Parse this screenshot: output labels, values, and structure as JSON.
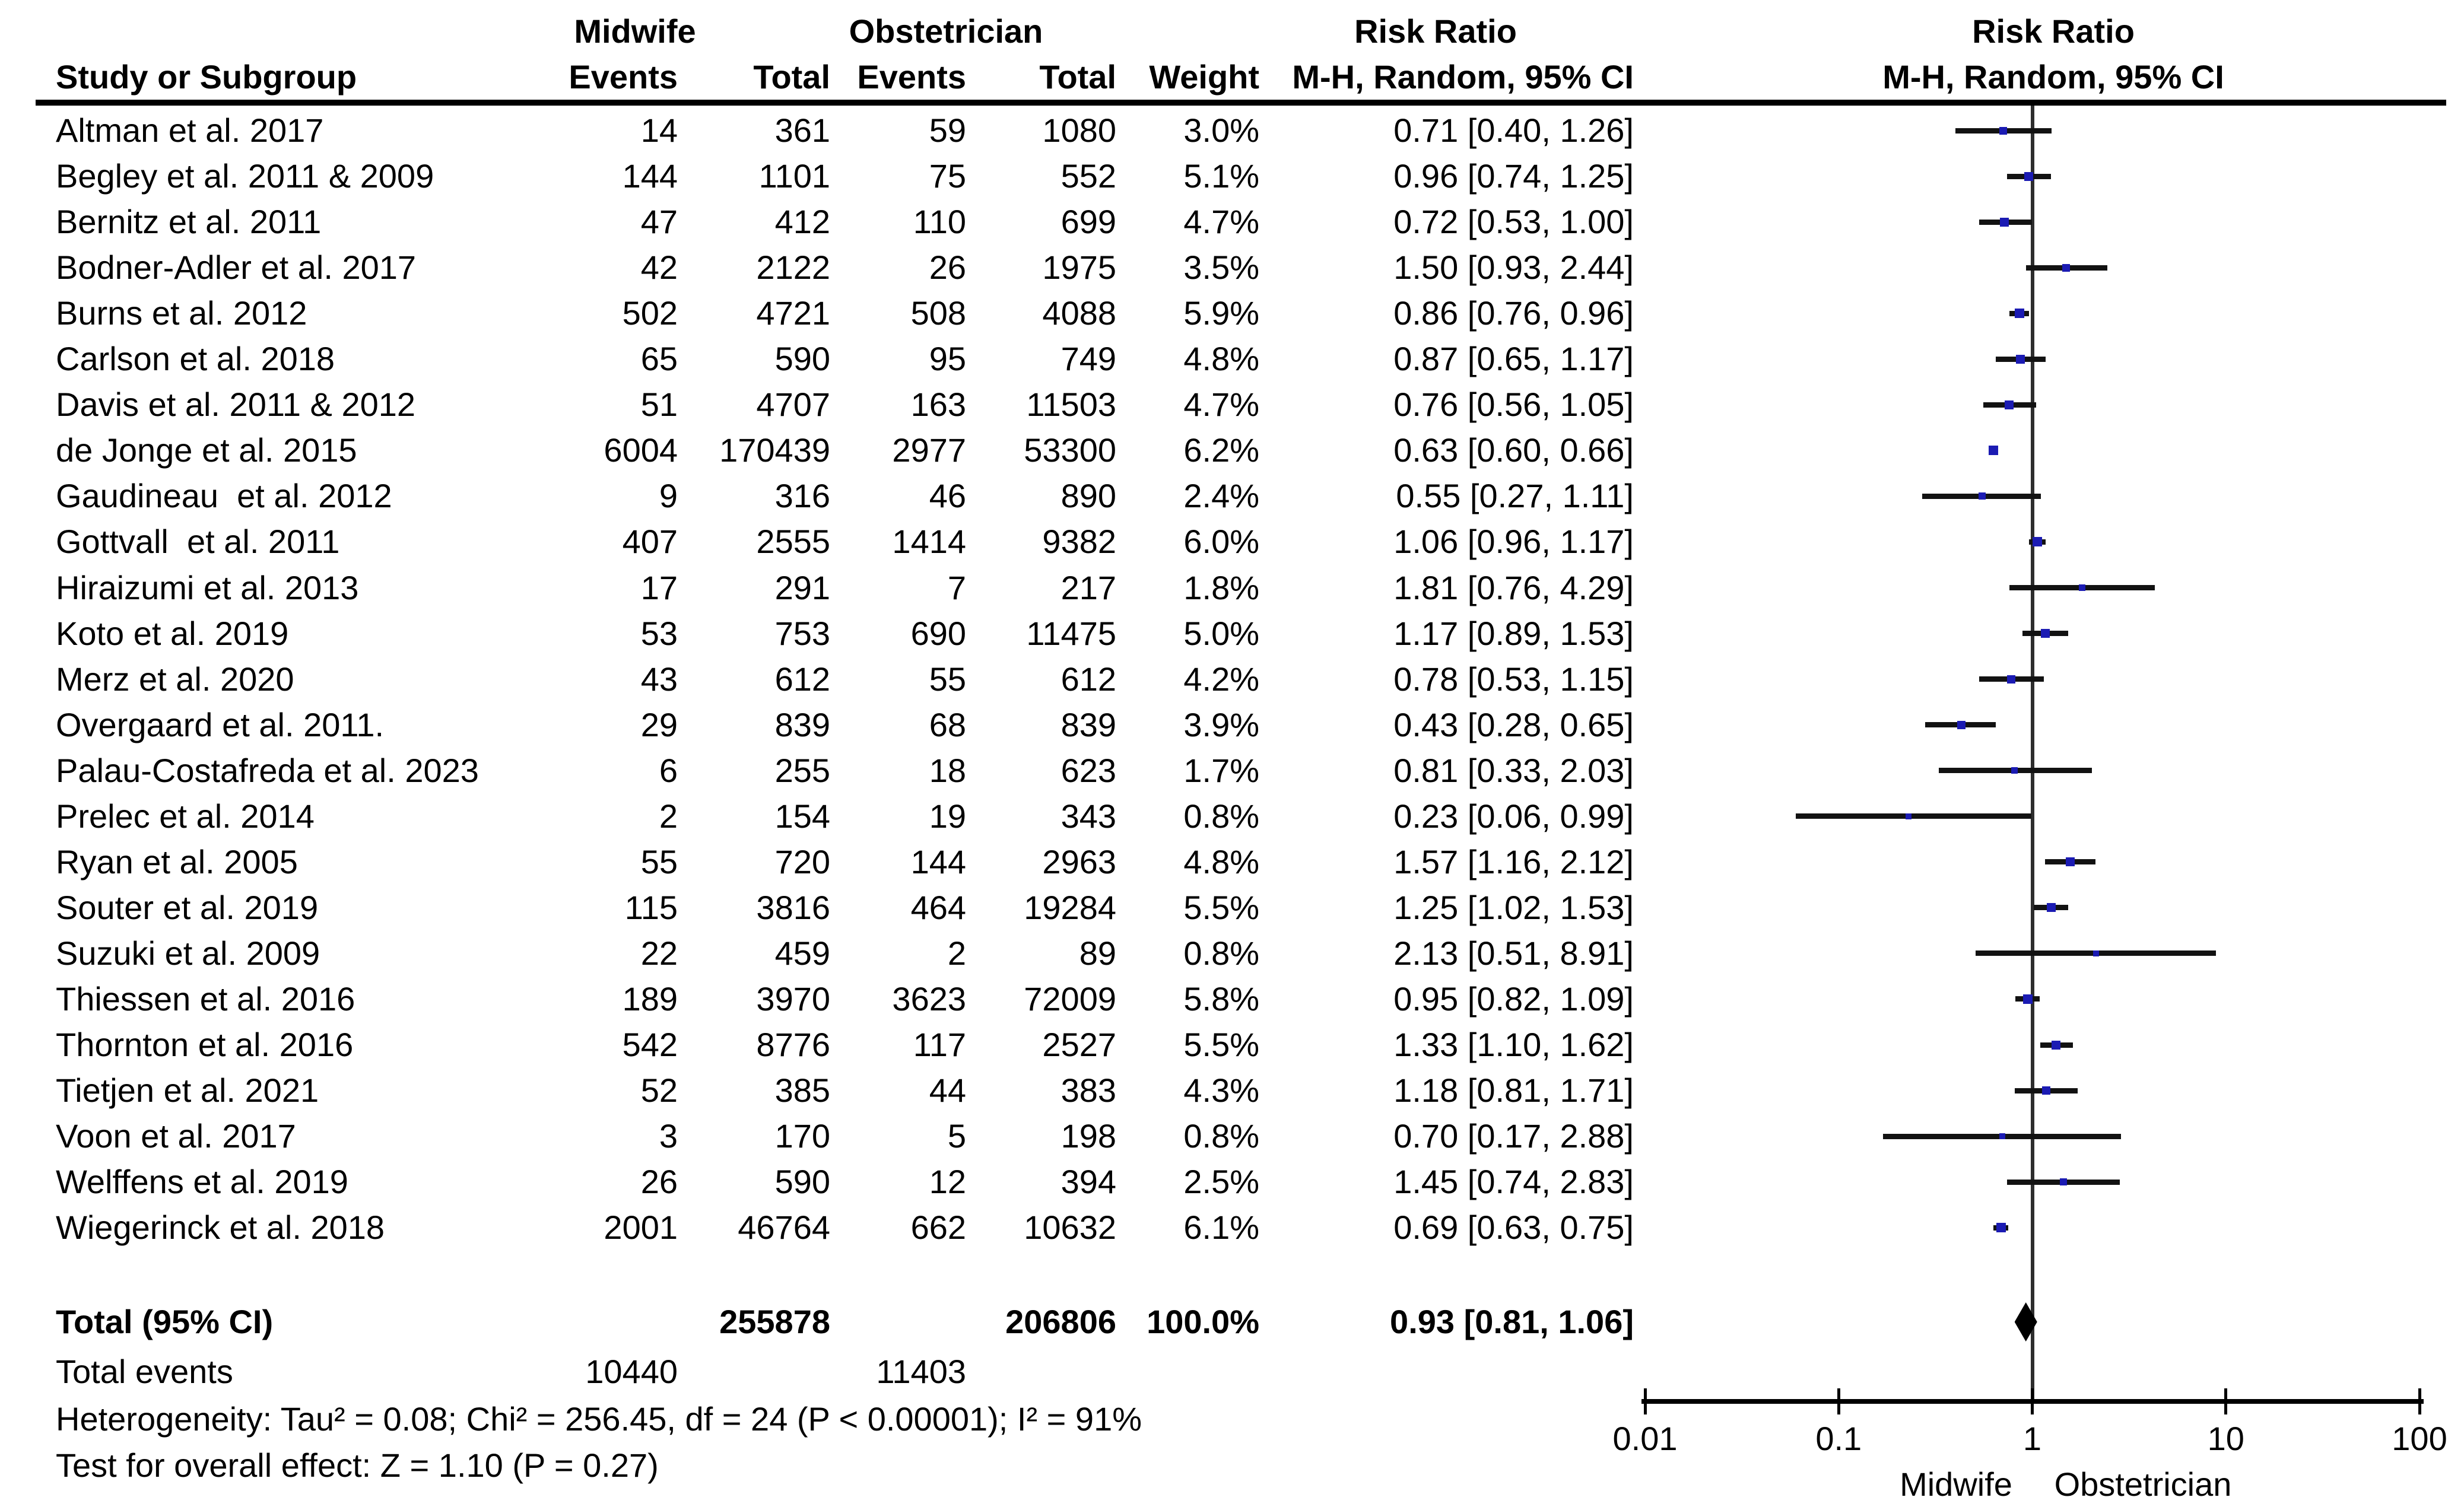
{
  "header": {
    "midwife": "Midwife",
    "obstetrician": "Obstetrician",
    "risk_ratio": "Risk Ratio",
    "study_or_subgroup": "Study or Subgroup",
    "events": "Events",
    "total": "Total",
    "weight": "Weight",
    "mh_random": "M-H, Random, 95% CI"
  },
  "axis": {
    "tick_labels": [
      "0.01",
      "0.1",
      "1",
      "10",
      "100"
    ],
    "left_label": "Midwife",
    "right_label": "Obstetrician"
  },
  "colors": {
    "marker": "#1b1bb3",
    "ci_line": "#121212",
    "diamond": "#000000",
    "center_line": "#2e2e2e",
    "axis": "#000000"
  },
  "chart_data": {
    "type": "forest",
    "effect_measure": "Risk Ratio",
    "method": "M-H, Random, 95% CI",
    "x_scale": "log",
    "x_ticks": [
      0.01,
      0.1,
      1,
      10,
      100
    ],
    "x_range": [
      0.01,
      100
    ],
    "studies": [
      {
        "name": "Altman et al. 2017",
        "midwife_events": "14",
        "midwife_total": "361",
        "obstetrician_events": "59",
        "obstetrician_total": "1080",
        "weight": "3.0%",
        "weight_value": 3.0,
        "rr": 0.71,
        "ci_low": 0.4,
        "ci_high": 1.26,
        "ci_label": "0.71 [0.40, 1.26]"
      },
      {
        "name": "Begley et al. 2011 & 2009",
        "midwife_events": "144",
        "midwife_total": "1101",
        "obstetrician_events": "75",
        "obstetrician_total": "552",
        "weight": "5.1%",
        "weight_value": 5.1,
        "rr": 0.96,
        "ci_low": 0.74,
        "ci_high": 1.25,
        "ci_label": "0.96 [0.74, 1.25]"
      },
      {
        "name": "Bernitz et al. 2011",
        "midwife_events": "47",
        "midwife_total": "412",
        "obstetrician_events": "110",
        "obstetrician_total": "699",
        "weight": "4.7%",
        "weight_value": 4.7,
        "rr": 0.72,
        "ci_low": 0.53,
        "ci_high": 1.0,
        "ci_label": "0.72 [0.53, 1.00]"
      },
      {
        "name": "Bodner-Adler et al. 2017",
        "midwife_events": "42",
        "midwife_total": "2122",
        "obstetrician_events": "26",
        "obstetrician_total": "1975",
        "weight": "3.5%",
        "weight_value": 3.5,
        "rr": 1.5,
        "ci_low": 0.93,
        "ci_high": 2.44,
        "ci_label": "1.50 [0.93, 2.44]"
      },
      {
        "name": "Burns et al. 2012",
        "midwife_events": "502",
        "midwife_total": "4721",
        "obstetrician_events": "508",
        "obstetrician_total": "4088",
        "weight": "5.9%",
        "weight_value": 5.9,
        "rr": 0.86,
        "ci_low": 0.76,
        "ci_high": 0.96,
        "ci_label": "0.86 [0.76, 0.96]"
      },
      {
        "name": "Carlson et al. 2018",
        "midwife_events": "65",
        "midwife_total": "590",
        "obstetrician_events": "95",
        "obstetrician_total": "749",
        "weight": "4.8%",
        "weight_value": 4.8,
        "rr": 0.87,
        "ci_low": 0.65,
        "ci_high": 1.17,
        "ci_label": "0.87 [0.65, 1.17]"
      },
      {
        "name": "Davis et al. 2011 & 2012",
        "midwife_events": "51",
        "midwife_total": "4707",
        "obstetrician_events": "163",
        "obstetrician_total": "11503",
        "weight": "4.7%",
        "weight_value": 4.7,
        "rr": 0.76,
        "ci_low": 0.56,
        "ci_high": 1.05,
        "ci_label": "0.76 [0.56, 1.05]"
      },
      {
        "name": "de Jonge et al. 2015",
        "midwife_events": "6004",
        "midwife_total": "170439",
        "obstetrician_events": "2977",
        "obstetrician_total": "53300",
        "weight": "6.2%",
        "weight_value": 6.2,
        "rr": 0.63,
        "ci_low": 0.6,
        "ci_high": 0.66,
        "ci_label": "0.63 [0.60, 0.66]"
      },
      {
        "name": "Gaudineau  et al. 2012",
        "midwife_events": "9",
        "midwife_total": "316",
        "obstetrician_events": "46",
        "obstetrician_total": "890",
        "weight": "2.4%",
        "weight_value": 2.4,
        "rr": 0.55,
        "ci_low": 0.27,
        "ci_high": 1.11,
        "ci_label": "0.55 [0.27, 1.11]"
      },
      {
        "name": "Gottvall  et al. 2011",
        "midwife_events": "407",
        "midwife_total": "2555",
        "obstetrician_events": "1414",
        "obstetrician_total": "9382",
        "weight": "6.0%",
        "weight_value": 6.0,
        "rr": 1.06,
        "ci_low": 0.96,
        "ci_high": 1.17,
        "ci_label": "1.06 [0.96, 1.17]"
      },
      {
        "name": "Hiraizumi et al. 2013",
        "midwife_events": "17",
        "midwife_total": "291",
        "obstetrician_events": "7",
        "obstetrician_total": "217",
        "weight": "1.8%",
        "weight_value": 1.8,
        "rr": 1.81,
        "ci_low": 0.76,
        "ci_high": 4.29,
        "ci_label": "1.81 [0.76, 4.29]"
      },
      {
        "name": "Koto et al. 2019",
        "midwife_events": "53",
        "midwife_total": "753",
        "obstetrician_events": "690",
        "obstetrician_total": "11475",
        "weight": "5.0%",
        "weight_value": 5.0,
        "rr": 1.17,
        "ci_low": 0.89,
        "ci_high": 1.53,
        "ci_label": "1.17 [0.89, 1.53]"
      },
      {
        "name": "Merz et al. 2020",
        "midwife_events": "43",
        "midwife_total": "612",
        "obstetrician_events": "55",
        "obstetrician_total": "612",
        "weight": "4.2%",
        "weight_value": 4.2,
        "rr": 0.78,
        "ci_low": 0.53,
        "ci_high": 1.15,
        "ci_label": "0.78 [0.53, 1.15]"
      },
      {
        "name": "Overgaard et al. 2011.",
        "midwife_events": "29",
        "midwife_total": "839",
        "obstetrician_events": "68",
        "obstetrician_total": "839",
        "weight": "3.9%",
        "weight_value": 3.9,
        "rr": 0.43,
        "ci_low": 0.28,
        "ci_high": 0.65,
        "ci_label": "0.43 [0.28, 0.65]"
      },
      {
        "name": "Palau-Costafreda et al. 2023",
        "midwife_events": "6",
        "midwife_total": "255",
        "obstetrician_events": "18",
        "obstetrician_total": "623",
        "weight": "1.7%",
        "weight_value": 1.7,
        "rr": 0.81,
        "ci_low": 0.33,
        "ci_high": 2.03,
        "ci_label": "0.81 [0.33, 2.03]"
      },
      {
        "name": "Prelec et al. 2014",
        "midwife_events": "2",
        "midwife_total": "154",
        "obstetrician_events": "19",
        "obstetrician_total": "343",
        "weight": "0.8%",
        "weight_value": 0.8,
        "rr": 0.23,
        "ci_low": 0.06,
        "ci_high": 0.99,
        "ci_label": "0.23 [0.06, 0.99]"
      },
      {
        "name": "Ryan et al. 2005",
        "midwife_events": "55",
        "midwife_total": "720",
        "obstetrician_events": "144",
        "obstetrician_total": "2963",
        "weight": "4.8%",
        "weight_value": 4.8,
        "rr": 1.57,
        "ci_low": 1.16,
        "ci_high": 2.12,
        "ci_label": "1.57 [1.16, 2.12]"
      },
      {
        "name": "Souter et al. 2019",
        "midwife_events": "115",
        "midwife_total": "3816",
        "obstetrician_events": "464",
        "obstetrician_total": "19284",
        "weight": "5.5%",
        "weight_value": 5.5,
        "rr": 1.25,
        "ci_low": 1.02,
        "ci_high": 1.53,
        "ci_label": "1.25 [1.02, 1.53]"
      },
      {
        "name": "Suzuki et al. 2009",
        "midwife_events": "22",
        "midwife_total": "459",
        "obstetrician_events": "2",
        "obstetrician_total": "89",
        "weight": "0.8%",
        "weight_value": 0.8,
        "rr": 2.13,
        "ci_low": 0.51,
        "ci_high": 8.91,
        "ci_label": "2.13 [0.51, 8.91]"
      },
      {
        "name": "Thiessen et al. 2016",
        "midwife_events": "189",
        "midwife_total": "3970",
        "obstetrician_events": "3623",
        "obstetrician_total": "72009",
        "weight": "5.8%",
        "weight_value": 5.8,
        "rr": 0.95,
        "ci_low": 0.82,
        "ci_high": 1.09,
        "ci_label": "0.95 [0.82, 1.09]"
      },
      {
        "name": "Thornton et al. 2016",
        "midwife_events": "542",
        "midwife_total": "8776",
        "obstetrician_events": "117",
        "obstetrician_total": "2527",
        "weight": "5.5%",
        "weight_value": 5.5,
        "rr": 1.33,
        "ci_low": 1.1,
        "ci_high": 1.62,
        "ci_label": "1.33 [1.10, 1.62]"
      },
      {
        "name": "Tietjen et al. 2021",
        "midwife_events": "52",
        "midwife_total": "385",
        "obstetrician_events": "44",
        "obstetrician_total": "383",
        "weight": "4.3%",
        "weight_value": 4.3,
        "rr": 1.18,
        "ci_low": 0.81,
        "ci_high": 1.71,
        "ci_label": "1.18 [0.81, 1.71]"
      },
      {
        "name": "Voon et al. 2017",
        "midwife_events": "3",
        "midwife_total": "170",
        "obstetrician_events": "5",
        "obstetrician_total": "198",
        "weight": "0.8%",
        "weight_value": 0.8,
        "rr": 0.7,
        "ci_low": 0.17,
        "ci_high": 2.88,
        "ci_label": "0.70 [0.17, 2.88]"
      },
      {
        "name": "Welffens et al. 2019",
        "midwife_events": "26",
        "midwife_total": "590",
        "obstetrician_events": "12",
        "obstetrician_total": "394",
        "weight": "2.5%",
        "weight_value": 2.5,
        "rr": 1.45,
        "ci_low": 0.74,
        "ci_high": 2.83,
        "ci_label": "1.45 [0.74, 2.83]"
      },
      {
        "name": "Wiegerinck et al. 2018",
        "midwife_events": "2001",
        "midwife_total": "46764",
        "obstetrician_events": "662",
        "obstetrician_total": "10632",
        "weight": "6.1%",
        "weight_value": 6.1,
        "rr": 0.69,
        "ci_low": 0.63,
        "ci_high": 0.75,
        "ci_label": "0.69 [0.63, 0.75]"
      }
    ],
    "total": {
      "label": "Total (95% CI)",
      "midwife_total": "255878",
      "obstetrician_total": "206806",
      "weight": "100.0%",
      "rr": 0.93,
      "ci_low": 0.81,
      "ci_high": 1.06,
      "ci_label": "0.93 [0.81, 1.06]"
    },
    "total_events": {
      "label": "Total events",
      "midwife": "10440",
      "obstetrician": "11403"
    },
    "heterogeneity": "Heterogeneity: Tau² = 0.08; Chi² = 256.45, df = 24 (P < 0.00001); I² = 91%",
    "overall_effect": "Test for overall effect: Z = 1.10 (P = 0.27)"
  }
}
